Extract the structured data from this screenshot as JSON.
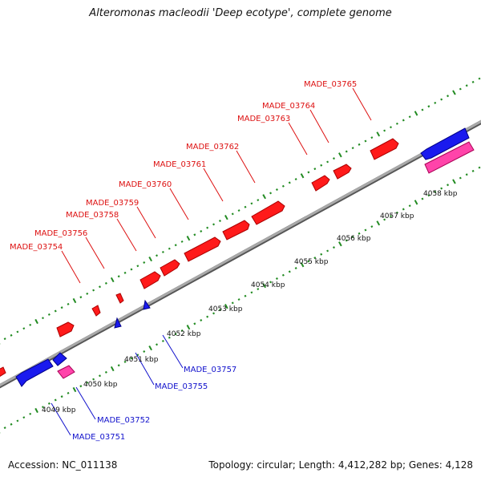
{
  "title": "Alteromonas macleodii 'Deep ecotype', complete genome",
  "footer": {
    "accession": "Accession: NC_011138",
    "summary": "Topology: circular; Length: 4,412,282 bp; Genes: 4,128"
  },
  "colors": {
    "backbone": "#8c8c8c",
    "tick": "#228b22",
    "forward_gene": "#ff1a1a",
    "reverse_gene": "#1a1aee",
    "rna_gene": "#ff44aa",
    "forward_label": "#dd1111",
    "reverse_label": "#1111cc"
  },
  "tick_labels": [
    "4049 kbp",
    "4050 kbp",
    "4051 kbp",
    "4052 kbp",
    "4053 kbp",
    "4054 kbp",
    "4055 kbp",
    "4056 kbp",
    "4057 kbp",
    "4058 kbp"
  ],
  "forward_gene_labels": [
    "MADE_03754",
    "MADE_03756",
    "MADE_03758",
    "MADE_03759",
    "MADE_03760",
    "MADE_03761",
    "MADE_03762",
    "MADE_03763",
    "MADE_03764",
    "MADE_03765"
  ],
  "reverse_gene_labels": [
    "MADE_03751",
    "MADE_03752",
    "MADE_03755",
    "MADE_03757"
  ]
}
